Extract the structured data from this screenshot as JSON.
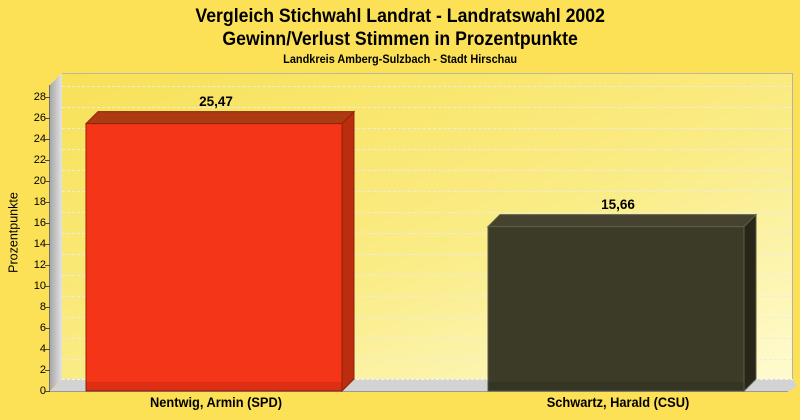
{
  "header": {
    "title_line1": "Vergleich Stichwahl Landrat - Landratswahl 2002",
    "title_line2": "Gewinn/Verlust Stimmen in Prozentpunkte",
    "subtitle": "Landkreis Amberg-Sulzbach - Stadt Hirschau"
  },
  "chart_data": {
    "type": "bar",
    "style": "3d-bars",
    "title": "Vergleich Stichwahl Landrat - Landratswahl 2002",
    "subtitle": "Gewinn/Verlust Stimmen in Prozentpunkte",
    "caption": "Landkreis Amberg-Sulzbach - Stadt Hirschau",
    "categories": [
      "Nentwig, Armin (SPD)",
      "Schwartz, Harald (CSU)"
    ],
    "values": [
      25.47,
      15.66
    ],
    "value_labels": [
      "25,47",
      "15,66"
    ],
    "xlabel": "",
    "ylabel": "Prozentpunkte",
    "y_ticks": [
      0,
      2,
      4,
      6,
      8,
      10,
      12,
      14,
      16,
      18,
      20,
      22,
      24,
      26,
      28
    ],
    "ylim": [
      0,
      29
    ],
    "grid": "horizontal-dashed",
    "legend": "none",
    "colors": {
      "page_background": "#FCE156",
      "plot_background_top": "#F8E158",
      "plot_background_bottom": "#FFFBD0",
      "wall_gray": "#C8C8C8",
      "floor_gray": "#D3D3D3"
    },
    "bar_colors": [
      {
        "name": "SPD-red",
        "front": "#F53517",
        "top": "#AC3A12",
        "side": "#BB2D0E",
        "stroke": "#8E2309"
      },
      {
        "name": "CSU-dark",
        "front": "#3C3B28",
        "top": "#454330",
        "side": "#272619",
        "stroke": "#5F5D43"
      }
    ]
  }
}
